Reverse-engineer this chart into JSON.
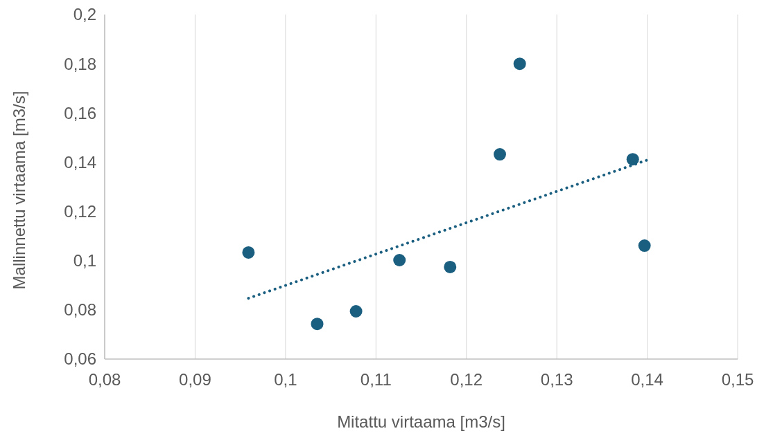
{
  "chart_data": {
    "type": "scatter",
    "xlabel": "Mitattu virtaama [m3/s]",
    "ylabel": "Mallinnettu virtaama [m3/s]",
    "xlim": [
      0.08,
      0.15
    ],
    "ylim": [
      0.06,
      0.2
    ],
    "xticks": [
      {
        "value": 0.08,
        "label": "0,08"
      },
      {
        "value": 0.09,
        "label": "0,09"
      },
      {
        "value": 0.1,
        "label": "0,1"
      },
      {
        "value": 0.11,
        "label": "0,11"
      },
      {
        "value": 0.12,
        "label": "0,12"
      },
      {
        "value": 0.13,
        "label": "0,13"
      },
      {
        "value": 0.14,
        "label": "0,14"
      },
      {
        "value": 0.15,
        "label": "0,15"
      }
    ],
    "yticks": [
      {
        "value": 0.06,
        "label": "0,06"
      },
      {
        "value": 0.08,
        "label": "0,08"
      },
      {
        "value": 0.1,
        "label": "0,1"
      },
      {
        "value": 0.12,
        "label": "0,12"
      },
      {
        "value": 0.14,
        "label": "0,14"
      },
      {
        "value": 0.16,
        "label": "0,16"
      },
      {
        "value": 0.18,
        "label": "0,18"
      },
      {
        "value": 0.2,
        "label": "0,2"
      }
    ],
    "grid": "x",
    "marker": "circle",
    "series": [
      {
        "color": "#1a5e80",
        "x": [
          0.0959,
          0.1035,
          0.1078,
          0.1126,
          0.1182,
          0.1237,
          0.1259,
          0.1384,
          0.1397
        ],
        "values": [
          0.1033,
          0.0743,
          0.0794,
          0.1002,
          0.0974,
          0.1432,
          0.18,
          0.1412,
          0.1061
        ]
      },
      {
        "type": "line",
        "color": "#1a5e80",
        "line_style": "dotted",
        "marker": "none",
        "x": [
          0.0959,
          0.1401
        ],
        "values": [
          0.0847,
          0.141
        ]
      }
    ]
  }
}
